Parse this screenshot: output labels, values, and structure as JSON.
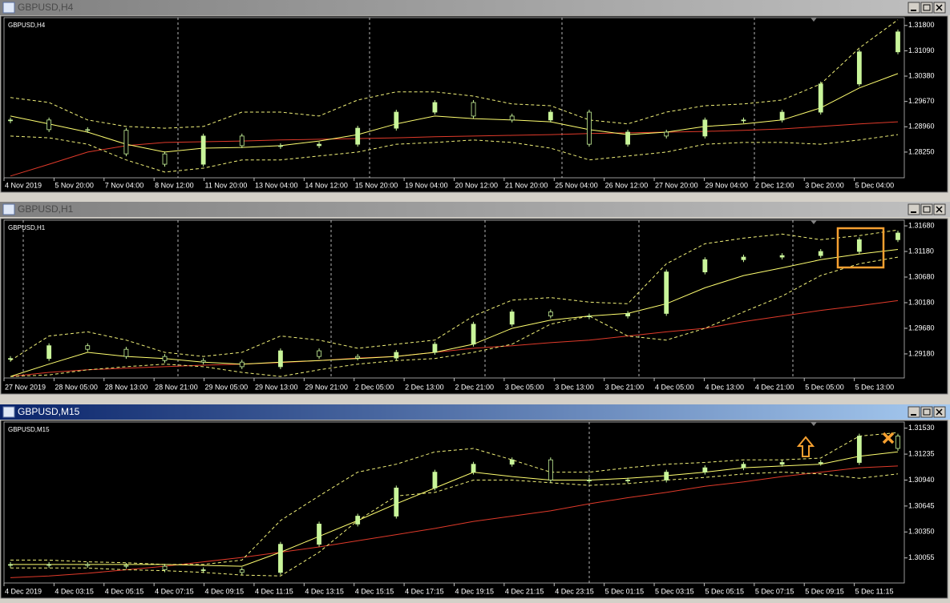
{
  "chart_data": [
    {
      "type": "candlestick",
      "title": "GBPUSD,H4",
      "x_labels": [
        "4 Nov 2019",
        "5 Nov 20:00",
        "7 Nov 04:00",
        "8 Nov 12:00",
        "11 Nov 20:00",
        "13 Nov 04:00",
        "14 Nov 12:00",
        "15 Nov 20:00",
        "19 Nov 04:00",
        "20 Nov 12:00",
        "21 Nov 20:00",
        "25 Nov 04:00",
        "26 Nov 12:00",
        "27 Nov 20:00",
        "29 Nov 04:00",
        "2 Dec 12:00",
        "3 Dec 20:00",
        "5 Dec 04:00"
      ],
      "ylim": [
        1.2753,
        1.3202
      ],
      "yticks": [
        {
          "value": 1.318,
          "label": "1.31800"
        },
        {
          "value": 1.3109,
          "label": "1.31090"
        },
        {
          "value": 1.3038,
          "label": "1.30380"
        },
        {
          "value": 1.2967,
          "label": "1.29670"
        },
        {
          "value": 1.2896,
          "label": "1.28960"
        },
        {
          "value": 1.2825,
          "label": "1.28250"
        }
      ],
      "series": [
        {
          "type": "line",
          "color": "#e03a2a",
          "values": [
            1.2758,
            1.2791,
            1.2825,
            1.2843,
            1.2852,
            1.2854,
            1.2856,
            1.2859,
            1.2861,
            1.2863,
            1.2865,
            1.2868,
            1.287,
            1.2872,
            1.2874,
            1.2877,
            1.2879,
            1.2881,
            1.2883,
            1.2886,
            1.289,
            1.2897,
            1.2904,
            1.291
          ]
        },
        {
          "type": "line",
          "dashed": true,
          "color": "#f2f27a",
          "values": [
            1.2978,
            1.2964,
            1.2915,
            1.2897,
            1.2892,
            1.2897,
            1.2937,
            1.2937,
            1.2926,
            1.2971,
            1.2994,
            1.2994,
            1.2982,
            1.296,
            1.2955,
            1.2915,
            1.2904,
            1.2937,
            1.2955,
            1.296,
            1.2971,
            1.3016,
            1.3117,
            1.3196
          ]
        },
        {
          "type": "line",
          "dashed": true,
          "color": "#f2f27a",
          "values": [
            1.287,
            1.2865,
            1.2847,
            1.2803,
            1.2769,
            1.278,
            1.2803,
            1.2803,
            1.2814,
            1.2825,
            1.2847,
            1.2852,
            1.2859,
            1.2852,
            1.2836,
            1.2803,
            1.2814,
            1.2825,
            1.2847,
            1.2852,
            1.2852,
            1.2847,
            1.2859,
            1.2874
          ]
        },
        {
          "type": "line",
          "color": "#ffff70",
          "values": [
            1.2926,
            1.2904,
            1.2881,
            1.2847,
            1.2825,
            1.2836,
            1.2838,
            1.2843,
            1.2856,
            1.2874,
            1.2904,
            1.2926,
            1.2919,
            1.2915,
            1.291,
            1.2888,
            1.2874,
            1.2881,
            1.2897,
            1.2904,
            1.2915,
            1.2949,
            1.3005,
            1.3045
          ]
        },
        {
          "type": "candle",
          "color": "#c9f59a",
          "values": [
            1.2915,
            1.2888,
            1.2886,
            1.282,
            1.2791,
            1.287,
            1.2843,
            1.2843,
            1.2847,
            1.2892,
            1.2937,
            1.2964,
            1.2926,
            1.2915,
            1.2937,
            1.2847,
            1.2881,
            1.287,
            1.2915,
            1.2915,
            1.2937,
            1.3016,
            1.3106,
            1.3162
          ]
        }
      ]
    },
    {
      "type": "candlestick",
      "title": "GBPUSD,H1",
      "x_labels": [
        "27 Nov 2019",
        "28 Nov 05:00",
        "28 Nov 13:00",
        "28 Nov 21:00",
        "29 Nov 05:00",
        "29 Nov 13:00",
        "29 Nov 21:00",
        "2 Dec 05:00",
        "2 Dec 13:00",
        "2 Dec 21:00",
        "3 Dec 05:00",
        "3 Dec 13:00",
        "3 Dec 21:00",
        "4 Dec 05:00",
        "4 Dec 13:00",
        "4 Dec 21:00",
        "5 Dec 05:00",
        "5 Dec 13:00"
      ],
      "ylim": [
        1.2871,
        1.3179
      ],
      "yticks": [
        {
          "value": 1.3168,
          "label": "1.31680"
        },
        {
          "value": 1.3118,
          "label": "1.31180"
        },
        {
          "value": 1.3068,
          "label": "1.30680"
        },
        {
          "value": 1.3018,
          "label": "1.30180"
        },
        {
          "value": 1.2968,
          "label": "1.29680"
        },
        {
          "value": 1.2918,
          "label": "1.29180"
        }
      ],
      "series": [
        {
          "type": "line",
          "color": "#e03a2a",
          "values": [
            1.2874,
            1.2882,
            1.2887,
            1.289,
            1.2893,
            1.2896,
            1.2898,
            1.2901,
            1.2905,
            1.291,
            1.2913,
            1.2921,
            1.2929,
            1.2934,
            1.294,
            1.2945,
            1.2953,
            1.2961,
            1.2968,
            1.2981,
            1.2992,
            1.3003,
            1.3012,
            1.3022
          ]
        },
        {
          "type": "line",
          "dashed": true,
          "color": "#f2f27a",
          "values": [
            1.2905,
            1.2953,
            1.2961,
            1.2945,
            1.2921,
            1.2913,
            1.2921,
            1.2953,
            1.2945,
            1.2929,
            1.2937,
            1.2945,
            1.2992,
            1.3023,
            1.3028,
            1.3019,
            1.3016,
            1.3094,
            1.3133,
            1.3144,
            1.3152,
            1.3141,
            1.3149,
            1.316
          ]
        },
        {
          "type": "line",
          "dashed": true,
          "color": "#f2f27a",
          "values": [
            1.2874,
            1.2877,
            1.2887,
            1.2893,
            1.2898,
            1.2893,
            1.2882,
            1.2874,
            1.2887,
            1.2898,
            1.2905,
            1.2909,
            1.2921,
            1.2937,
            1.2976,
            1.2992,
            1.2953,
            1.2945,
            1.2968,
            1.3,
            1.3031,
            1.3071,
            1.3094,
            1.3107
          ]
        },
        {
          "type": "line",
          "color": "#ffff70",
          "values": [
            1.2874,
            1.2898,
            1.2921,
            1.2913,
            1.2909,
            1.2902,
            1.2898,
            1.2902,
            1.2905,
            1.2909,
            1.2913,
            1.2921,
            1.2937,
            1.2968,
            1.2984,
            1.2992,
            1.2997,
            1.3016,
            1.3047,
            1.3071,
            1.3086,
            1.3102,
            1.3113,
            1.3122
          ]
        },
        {
          "type": "candle",
          "color": "#c9f59a",
          "values": [
            1.2909,
            1.2934,
            1.2927,
            1.2913,
            1.2905,
            1.2902,
            1.2893,
            1.2924,
            1.2913,
            1.291,
            1.2921,
            1.2937,
            1.2976,
            1.3,
            1.2992,
            1.2992,
            1.2997,
            1.3078,
            1.3102,
            1.3107,
            1.311,
            1.3118,
            1.3141,
            1.3154
          ]
        }
      ]
    },
    {
      "type": "candlestick",
      "title": "GBPUSD,M15",
      "x_labels": [
        "4 Dec 2019",
        "4 Dec 03:15",
        "4 Dec 05:15",
        "4 Dec 07:15",
        "4 Dec 09:15",
        "4 Dec 11:15",
        "4 Dec 13:15",
        "4 Dec 15:15",
        "4 Dec 17:15",
        "4 Dec 19:15",
        "4 Dec 21:15",
        "4 Dec 23:15",
        "5 Dec 01:15",
        "5 Dec 03:15",
        "5 Dec 05:15",
        "5 Dec 07:15",
        "5 Dec 09:15",
        "5 Dec 11:15"
      ],
      "ylim": [
        1.2977,
        1.316
      ],
      "yticks": [
        {
          "value": 1.3153,
          "label": "1.31530"
        },
        {
          "value": 1.31235,
          "label": "1.31235"
        },
        {
          "value": 1.3094,
          "label": "1.30940"
        },
        {
          "value": 1.30645,
          "label": "1.30645"
        },
        {
          "value": 1.3035,
          "label": "1.30350"
        },
        {
          "value": 1.30055,
          "label": "1.30055"
        }
      ],
      "series": [
        {
          "type": "line",
          "color": "#e03a2a",
          "values": [
            1.2983,
            1.2985,
            1.2988,
            1.2992,
            1.2996,
            1.3001,
            1.3006,
            1.3012,
            1.3018,
            1.3025,
            1.3032,
            1.3039,
            1.3047,
            1.3053,
            1.3059,
            1.3067,
            1.3074,
            1.308,
            1.3087,
            1.3092,
            1.3098,
            1.3103,
            1.3108,
            1.311
          ]
        },
        {
          "type": "line",
          "dashed": true,
          "color": "#f2f27a",
          "values": [
            1.3003,
            1.3003,
            1.3001,
            1.3,
            1.2998,
            1.2998,
            1.3003,
            1.3048,
            1.3076,
            1.3103,
            1.3112,
            1.3126,
            1.313,
            1.3117,
            1.3103,
            1.3103,
            1.3108,
            1.3112,
            1.3114,
            1.3117,
            1.3117,
            1.3119,
            1.3144,
            1.3148
          ]
        },
        {
          "type": "line",
          "dashed": true,
          "color": "#f2f27a",
          "values": [
            1.2994,
            1.2994,
            1.2994,
            1.2992,
            1.2991,
            1.2989,
            1.2986,
            1.2985,
            1.3012,
            1.3048,
            1.3076,
            1.308,
            1.3094,
            1.3094,
            1.3091,
            1.3088,
            1.309,
            1.3094,
            1.3097,
            1.3101,
            1.3103,
            1.3101,
            1.3096,
            1.3101
          ]
        },
        {
          "type": "line",
          "color": "#ffff70",
          "values": [
            1.2998,
            1.2998,
            1.2998,
            1.2998,
            1.2998,
            1.2997,
            1.2996,
            1.3012,
            1.303,
            1.3048,
            1.3067,
            1.3085,
            1.3103,
            1.3098,
            1.3094,
            1.3094,
            1.3096,
            1.3099,
            1.3103,
            1.3108,
            1.311,
            1.3112,
            1.3121,
            1.3126
          ]
        },
        {
          "type": "candle",
          "color": "#c9f59a",
          "values": [
            1.2998,
            1.2998,
            1.2997,
            1.2996,
            1.2992,
            1.2992,
            1.2989,
            1.3021,
            1.3044,
            1.3053,
            1.3085,
            1.3103,
            1.3112,
            1.3117,
            1.3094,
            1.3094,
            1.3094,
            1.3103,
            1.3108,
            1.3112,
            1.3114,
            1.3114,
            1.3144,
            1.313
          ]
        }
      ]
    }
  ]
}
